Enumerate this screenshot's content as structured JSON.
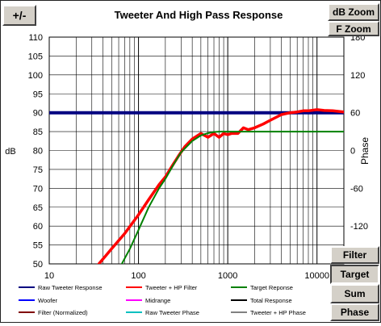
{
  "toolbar": {
    "plus_minus_label": "+/-",
    "db_zoom_label": "dB Zoom",
    "f_zoom_label": "F Zoom"
  },
  "side_buttons": {
    "filter_label": "Filter",
    "target_label": "Target",
    "sum_label": "Sum",
    "phase_label": "Phase",
    "active": "Target"
  },
  "chart_data": {
    "type": "line",
    "title": "Tweeter  And High Pass Response",
    "xlabel": "",
    "ylabel": "dB",
    "y2label": "Phase",
    "xscale": "log",
    "xlim": [
      10,
      20000
    ],
    "ylim": [
      50,
      110
    ],
    "y2lim": [
      -180,
      180
    ],
    "xticks": [
      10,
      100,
      1000,
      10000
    ],
    "xtick_labels": [
      "10",
      "100",
      "1000",
      "10000"
    ],
    "yticks": [
      50,
      55,
      60,
      65,
      70,
      75,
      80,
      85,
      90,
      95,
      100,
      105,
      110
    ],
    "y2ticks": [
      -120,
      -60,
      0,
      60,
      120,
      180
    ],
    "grid": true,
    "legend_position": "bottom",
    "legend": [
      {
        "name": "Raw Tweeter Response",
        "color": "#000080"
      },
      {
        "name": "Tweeter + HP Filter",
        "color": "#ff0000"
      },
      {
        "name": "Target Reponse",
        "color": "#008000"
      },
      {
        "name": "Woofer",
        "color": "#0000ff"
      },
      {
        "name": "Midrange",
        "color": "#ff00ff"
      },
      {
        "name": "Total Response",
        "color": "#000000"
      },
      {
        "name": "Filter (Normalized)",
        "color": "#800000"
      },
      {
        "name": "Raw Tweeter Phase",
        "color": "#00c0c0"
      },
      {
        "name": "Tweeter + HP Phase",
        "color": "#808080"
      }
    ],
    "series": [
      {
        "name": "Raw Tweeter Response",
        "color": "#000080",
        "x": [
          10,
          20000
        ],
        "y": [
          90,
          90
        ]
      },
      {
        "name": "Tweeter + HP Filter",
        "color": "#ff0000",
        "x": [
          36,
          50,
          70,
          100,
          130,
          170,
          200,
          240,
          280,
          330,
          400,
          500,
          600,
          700,
          800,
          900,
          1000,
          1100,
          1300,
          1500,
          1700,
          2000,
          2500,
          3000,
          4000,
          5000,
          6000,
          7000,
          8000,
          10000,
          12000,
          15000,
          20000
        ],
        "y": [
          50,
          54,
          58,
          63,
          67,
          71,
          73,
          76,
          78.5,
          81,
          83,
          84.5,
          83.5,
          84.5,
          83.5,
          84.5,
          84.2,
          84.5,
          84.5,
          86,
          85.5,
          86,
          87,
          88,
          89.5,
          90,
          90.2,
          90.5,
          90.5,
          90.8,
          90.6,
          90.5,
          90.2
        ]
      },
      {
        "name": "Target Reponse",
        "color": "#008000",
        "x": [
          65,
          80,
          100,
          130,
          170,
          200,
          250,
          300,
          400,
          500,
          600,
          700,
          800,
          1000,
          1500,
          2000,
          5000,
          10000,
          20000
        ],
        "y": [
          50,
          54,
          59,
          65,
          70,
          72.5,
          76.5,
          79.5,
          82.5,
          84,
          84.6,
          84.9,
          85,
          85,
          85,
          85,
          85,
          85,
          85
        ]
      }
    ]
  }
}
